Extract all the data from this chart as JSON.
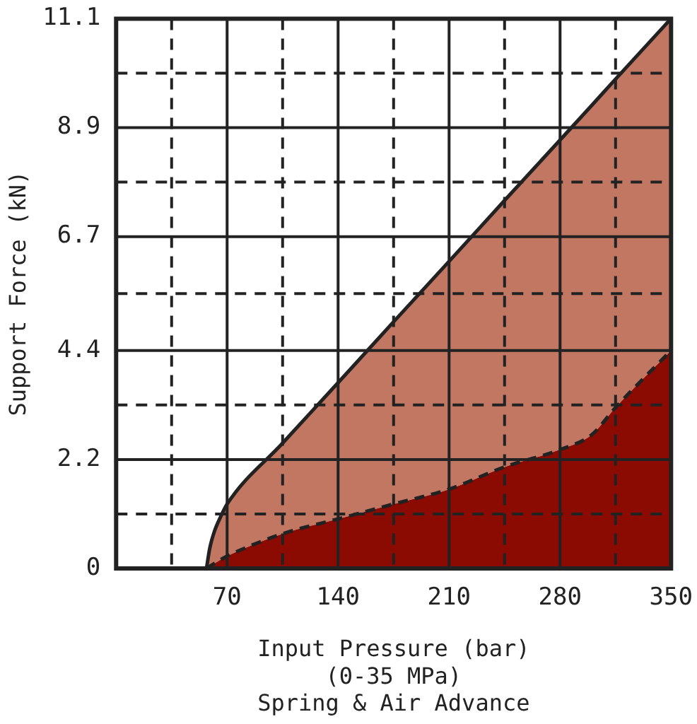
{
  "chart_data": {
    "type": "area",
    "xlabel": "Input Pressure (bar)\n(0-35 MPa)\nSpring & Air Advance",
    "ylabel": "Support Force (kN)",
    "x": [
      57,
      59,
      62,
      66,
      70,
      105,
      140,
      175,
      210,
      245,
      280,
      300,
      315,
      350
    ],
    "series": [
      {
        "color": "#8b0a02",
        "line_style": "dashed",
        "values": [
          0,
          0.04,
          0.1,
          0.18,
          0.25,
          0.7,
          1.0,
          1.3,
          1.6,
          2.05,
          2.4,
          2.7,
          3.25,
          4.4
        ]
      },
      {
        "color": "#c27762",
        "line_style": "solid",
        "values": [
          0,
          0.4,
          0.75,
          1.05,
          1.3,
          2.53,
          3.75,
          4.98,
          6.2,
          7.43,
          8.65,
          9.35,
          9.88,
          11.1
        ]
      }
    ],
    "xlim": [
      0,
      350
    ],
    "xticks": [
      {
        "value": 0,
        "label": null
      },
      {
        "value": 35,
        "label": null
      },
      70,
      {
        "value": 105,
        "label": null
      },
      140,
      {
        "value": 175,
        "label": null
      },
      210,
      {
        "value": 245,
        "label": null
      },
      280,
      {
        "value": 315,
        "label": null
      },
      350
    ],
    "ylim": [
      0,
      11.1
    ],
    "yticks": [
      0,
      {
        "value": 1.1,
        "label": null
      },
      2.2,
      {
        "value": 3.3,
        "label": null
      },
      4.4,
      {
        "value": 5.55,
        "label": null
      },
      6.7,
      {
        "value": 7.8,
        "label": null
      },
      8.9,
      {
        "value": 10,
        "label": null
      },
      11.1
    ],
    "grid": true,
    "legend": false,
    "marker": "none"
  }
}
